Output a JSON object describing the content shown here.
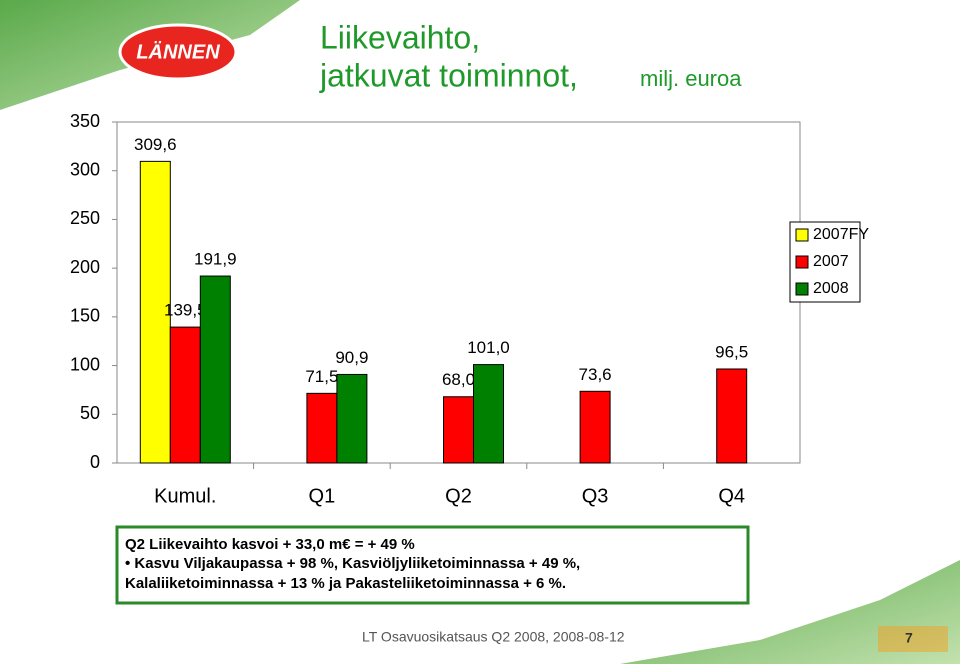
{
  "chart_data": {
    "type": "bar",
    "title": "Liikevaihto,",
    "subtitle": "jatkuvat toiminnot,",
    "unit_label": "milj. euroa",
    "categories": [
      "Kumul.",
      "Q1",
      "Q2",
      "Q3",
      "Q4"
    ],
    "series": [
      {
        "name": "2007FY",
        "color": "#ffff00",
        "values": [
          309.6,
          null,
          null,
          null,
          null
        ],
        "value_labels": [
          "309,6",
          null,
          null,
          null,
          null
        ]
      },
      {
        "name": "2007",
        "color": "#ff0000",
        "values": [
          139.5,
          71.5,
          68.0,
          73.6,
          96.5
        ],
        "value_labels": [
          "139,5",
          "71,5",
          "68,0",
          "73,6",
          "96,5"
        ]
      },
      {
        "name": "2008",
        "color": "#008000",
        "values": [
          191.9,
          90.9,
          101.0,
          null,
          null
        ],
        "value_labels": [
          "191,9",
          "90,9",
          "101,0",
          null,
          null
        ]
      }
    ],
    "ylim": [
      0,
      350
    ],
    "yticks": [
      0,
      50,
      100,
      150,
      200,
      250,
      300,
      350
    ],
    "grid": false,
    "legend": "right"
  },
  "slide": {
    "logo": "LÄNNEN",
    "notes": [
      "Q2 Liikevaihto kasvoi + 33,0 m€ = + 49 %",
      "• Kasvu Viljakaupassa + 98 %, Kasviöljyliiketoiminnassa + 49 %,",
      "Kalaliiketoiminnassa + 13 % ja Pakasteliiketoiminnassa + 6 %."
    ],
    "footer": "LT Osavuosikatsaus Q2 2008, 2008-08-12",
    "page": "7"
  }
}
